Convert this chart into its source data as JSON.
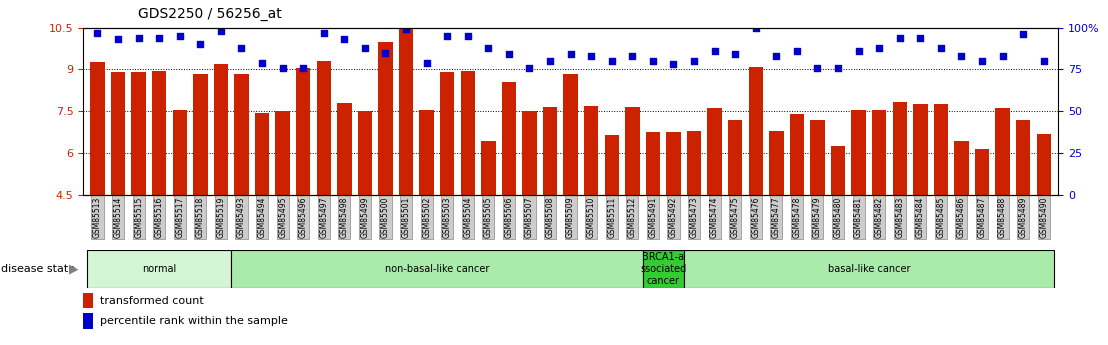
{
  "title": "GDS2250 / 56256_at",
  "samples": [
    "GSM85513",
    "GSM85514",
    "GSM85515",
    "GSM85516",
    "GSM85517",
    "GSM85518",
    "GSM85519",
    "GSM85493",
    "GSM85494",
    "GSM85495",
    "GSM85496",
    "GSM85497",
    "GSM85498",
    "GSM85499",
    "GSM85500",
    "GSM85501",
    "GSM85502",
    "GSM85503",
    "GSM85504",
    "GSM85505",
    "GSM85506",
    "GSM85507",
    "GSM85508",
    "GSM85509",
    "GSM85510",
    "GSM85511",
    "GSM85512",
    "GSM85491",
    "GSM85492",
    "GSM85473",
    "GSM85474",
    "GSM85475",
    "GSM85476",
    "GSM85477",
    "GSM85478",
    "GSM85479",
    "GSM85480",
    "GSM85481",
    "GSM85482",
    "GSM85483",
    "GSM85484",
    "GSM85485",
    "GSM85486",
    "GSM85487",
    "GSM85488",
    "GSM85489",
    "GSM85490"
  ],
  "bar_values": [
    9.25,
    8.9,
    8.9,
    8.95,
    7.55,
    8.85,
    9.2,
    8.85,
    7.45,
    7.5,
    9.05,
    9.3,
    7.8,
    7.5,
    10.0,
    10.45,
    7.55,
    8.9,
    8.95,
    6.45,
    8.55,
    7.5,
    7.65,
    8.85,
    7.7,
    6.65,
    7.65,
    6.75,
    6.75,
    6.8,
    7.6,
    7.2,
    9.1,
    6.8,
    7.4,
    7.2,
    6.25,
    7.55,
    7.55,
    7.85,
    7.75,
    7.75,
    6.45,
    6.15,
    7.6,
    7.2,
    6.7
  ],
  "percentile_values_pct": [
    97,
    93,
    94,
    94,
    95,
    90,
    98,
    88,
    79,
    76,
    76,
    97,
    93,
    88,
    85,
    99,
    79,
    95,
    95,
    88,
    84,
    76,
    80,
    84,
    83,
    80,
    83,
    80,
    78,
    80,
    86,
    84,
    100,
    83,
    86,
    76,
    76,
    86,
    88,
    94,
    94,
    88,
    83,
    80,
    83,
    96,
    80
  ],
  "disease_groups": [
    {
      "label": "normal",
      "start": 0,
      "end": 7,
      "color": "#d4f5d4"
    },
    {
      "label": "non-basal-like cancer",
      "start": 7,
      "end": 27,
      "color": "#aaeaaa"
    },
    {
      "label": "BRCA1-a\nssociated\ncancer",
      "start": 27,
      "end": 29,
      "color": "#33cc33"
    },
    {
      "label": "basal-like cancer",
      "start": 29,
      "end": 47,
      "color": "#aaeaaa"
    }
  ],
  "ylim_min": 4.5,
  "ylim_max": 10.5,
  "yticks": [
    4.5,
    6.0,
    7.5,
    9.0,
    10.5
  ],
  "yticklabels": [
    "4.5",
    "6",
    "7.5",
    "9",
    "10.5"
  ],
  "right_yticks_pct": [
    0,
    25,
    50,
    75,
    100
  ],
  "right_yticklabels": [
    "0",
    "25",
    "50",
    "75",
    "100%"
  ],
  "bar_color": "#cc2200",
  "dot_color": "#0000cc",
  "label_transformed": "transformed count",
  "label_percentile": "percentile rank within the sample"
}
